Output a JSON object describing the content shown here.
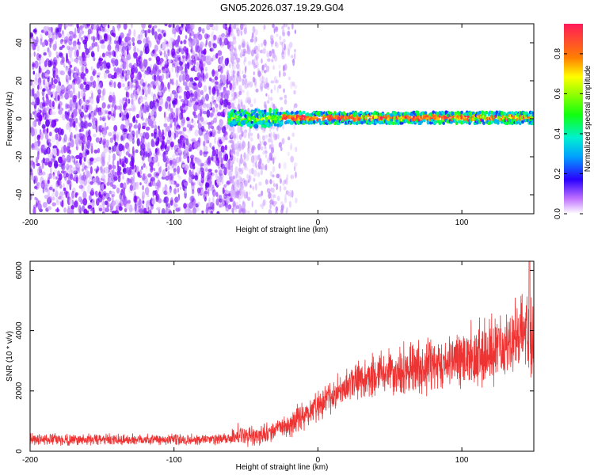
{
  "title": "GN05.2026.037.19.29.G04",
  "colors": {
    "snr_line": "#ee3333",
    "low_amp": "#7a00ff",
    "mid_amp": "#00e0a0",
    "high_amp": "#ff2a55"
  },
  "chart_data": [
    {
      "type": "heatmap",
      "name": "spectrogram",
      "title": "GN05.2026.037.19.29.G04",
      "xlabel": "Height of straight line (km)",
      "ylabel": "Frequency (Hz)",
      "xlim": [
        -200,
        150
      ],
      "ylim": [
        -50,
        50
      ],
      "xticks": [
        -200,
        -100,
        0,
        100
      ],
      "yticks": [
        -40,
        -20,
        0,
        20,
        40
      ],
      "colorbar": {
        "label": "Normalized spectral amplitude",
        "range": [
          0,
          0.95
        ],
        "ticks": [
          0.0,
          0.2,
          0.4,
          0.6,
          0.8
        ],
        "tick_labels": [
          "0.0",
          "0.2",
          "0.4",
          "0.6",
          "0.8"
        ]
      },
      "features": [
        {
          "description": "noise field",
          "x_range": [
            -200,
            -60
          ],
          "freq_range": [
            -50,
            50
          ],
          "amplitude": 0.1
        },
        {
          "description": "sparse noise",
          "x_range": [
            -60,
            -20
          ],
          "freq_range": [
            -50,
            50
          ],
          "amplitude": 0.05
        },
        {
          "description": "signal band",
          "x_range": [
            -60,
            150
          ],
          "freq_center": 0.5,
          "freq_halfwidth": 3,
          "amplitude": 0.9
        }
      ]
    },
    {
      "type": "line",
      "name": "snr",
      "xlabel": "Height of straight line (km)",
      "ylabel": "SNR (10 * v/v)",
      "xlim": [
        -200,
        150
      ],
      "ylim": [
        0,
        6300
      ],
      "xticks": [
        -200,
        -100,
        0,
        100
      ],
      "yticks": [
        0,
        2000,
        4000,
        6000
      ],
      "x": [
        -200,
        -180,
        -160,
        -140,
        -120,
        -100,
        -80,
        -60,
        -55,
        -50,
        -40,
        -30,
        -20,
        -10,
        0,
        10,
        20,
        30,
        40,
        50,
        60,
        70,
        80,
        90,
        100,
        110,
        120,
        130,
        140,
        145,
        150
      ],
      "y": [
        400,
        380,
        390,
        370,
        400,
        380,
        390,
        400,
        600,
        500,
        520,
        700,
        900,
        1200,
        1500,
        1800,
        2200,
        2400,
        2500,
        2600,
        2700,
        2800,
        2900,
        3000,
        3100,
        3200,
        3300,
        3400,
        3800,
        4200,
        3500
      ],
      "noise_amplitude": 800,
      "peak": {
        "x": 147,
        "y": 6300
      }
    }
  ]
}
